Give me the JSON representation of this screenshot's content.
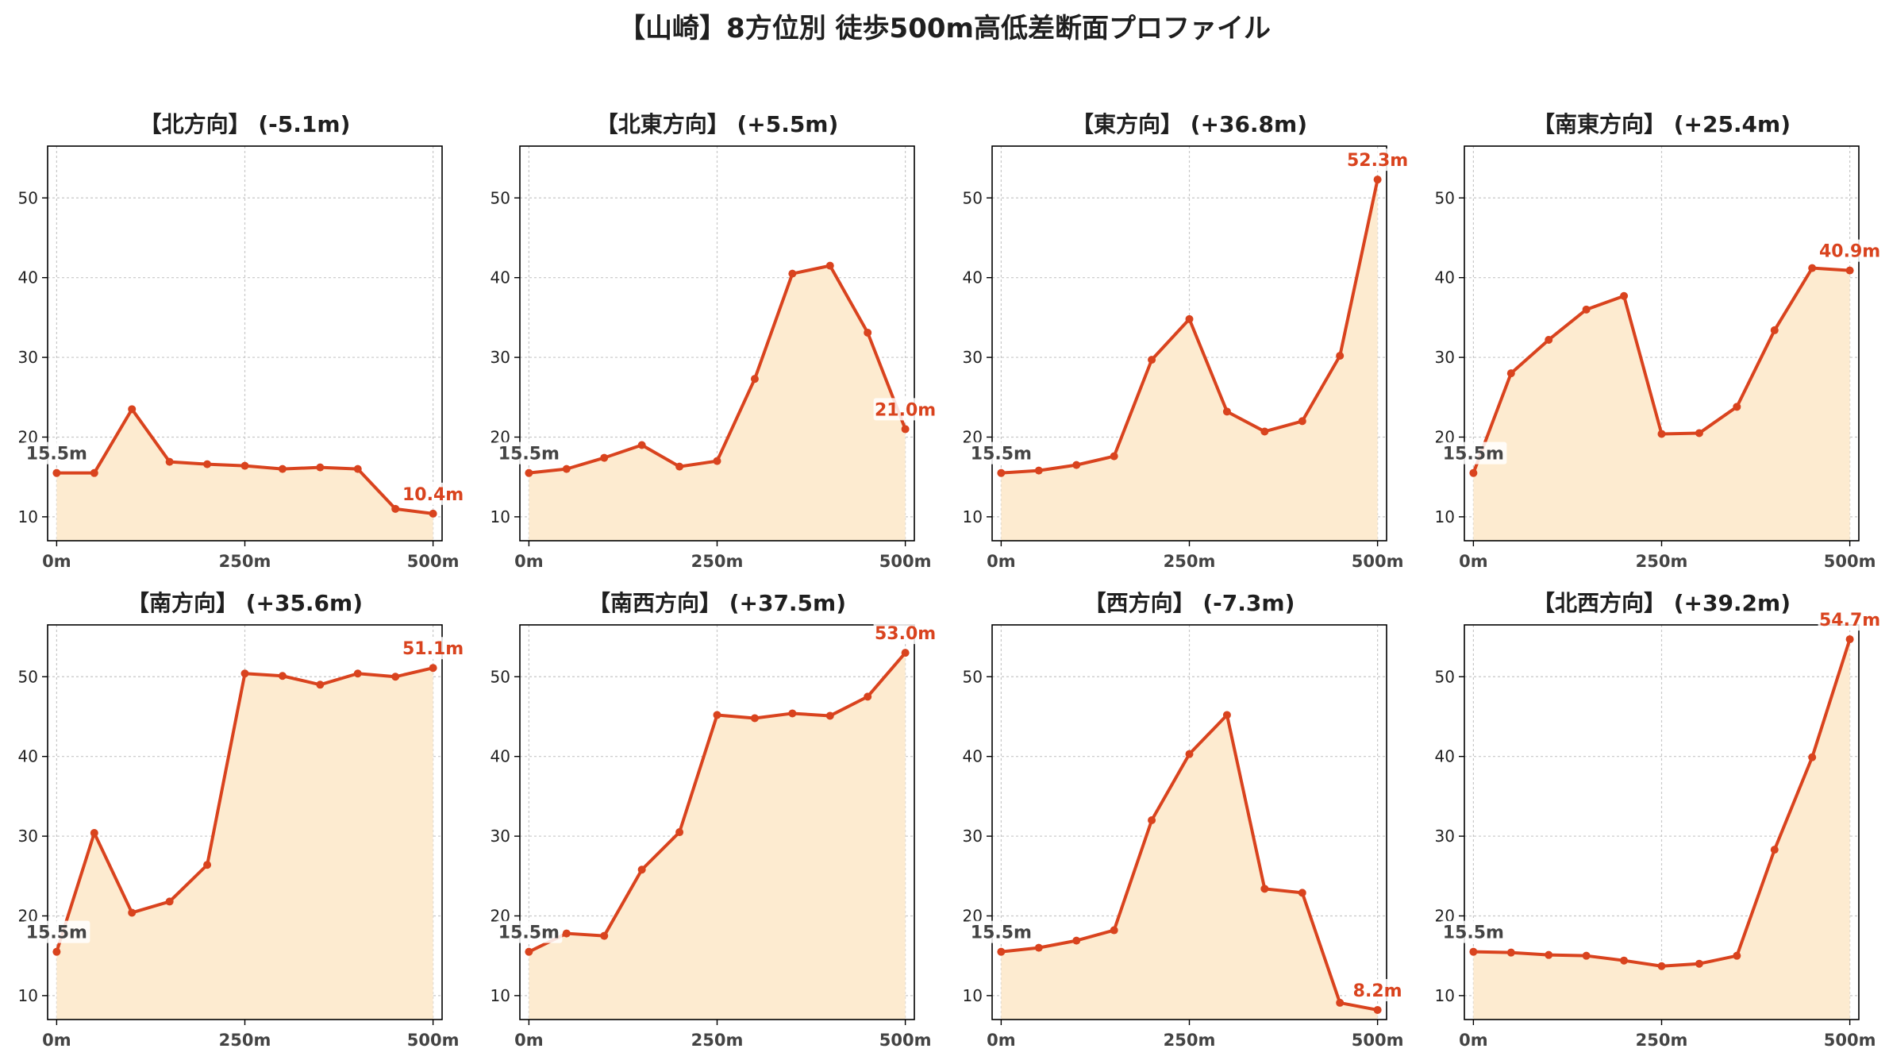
{
  "title": "【山崎】8方位別 徒歩500m高低差断面プロファイル",
  "colors": {
    "line": "#d9431e",
    "fill": "#fdebd0",
    "grid": "#c8c8c8",
    "start_label": "#444444",
    "end_label": "#d9431e"
  },
  "chart_data": [
    {
      "type": "area",
      "title": "【北方向】 (-5.1m)",
      "x": [
        0,
        50,
        100,
        150,
        200,
        250,
        300,
        350,
        400,
        450,
        500
      ],
      "values": [
        15.5,
        15.5,
        23.5,
        16.9,
        16.6,
        16.4,
        16.0,
        16.2,
        16.0,
        11.0,
        10.4
      ],
      "xticks": [
        "0m",
        "250m",
        "500m"
      ],
      "yticks": [
        10,
        20,
        30,
        40,
        50
      ],
      "ylim": [
        7,
        56.5
      ],
      "xlim": [
        -12,
        512
      ],
      "start_label": "15.5m",
      "end_label": "10.4m",
      "grid": true
    },
    {
      "type": "area",
      "title": "【北東方向】 (+5.5m)",
      "x": [
        0,
        50,
        100,
        150,
        200,
        250,
        300,
        350,
        400,
        450,
        500
      ],
      "values": [
        15.5,
        16.0,
        17.4,
        19.0,
        16.3,
        17.0,
        27.3,
        40.5,
        41.5,
        33.1,
        21.0
      ],
      "xticks": [
        "0m",
        "250m",
        "500m"
      ],
      "yticks": [
        10,
        20,
        30,
        40,
        50
      ],
      "ylim": [
        7,
        56.5
      ],
      "xlim": [
        -12,
        512
      ],
      "start_label": "15.5m",
      "end_label": "21.0m",
      "grid": true
    },
    {
      "type": "area",
      "title": "【東方向】 (+36.8m)",
      "x": [
        0,
        50,
        100,
        150,
        200,
        250,
        300,
        350,
        400,
        450,
        500
      ],
      "values": [
        15.5,
        15.8,
        16.5,
        17.6,
        29.7,
        34.8,
        23.2,
        20.7,
        22.0,
        30.2,
        52.3
      ],
      "xticks": [
        "0m",
        "250m",
        "500m"
      ],
      "yticks": [
        10,
        20,
        30,
        40,
        50
      ],
      "ylim": [
        7,
        56.5
      ],
      "xlim": [
        -12,
        512
      ],
      "start_label": "15.5m",
      "end_label": "52.3m",
      "grid": true
    },
    {
      "type": "area",
      "title": "【南東方向】 (+25.4m)",
      "x": [
        0,
        50,
        100,
        150,
        200,
        250,
        300,
        350,
        400,
        450,
        500
      ],
      "values": [
        15.5,
        28.0,
        32.2,
        36.0,
        37.7,
        20.4,
        20.5,
        23.8,
        33.4,
        41.2,
        40.9
      ],
      "xticks": [
        "0m",
        "250m",
        "500m"
      ],
      "yticks": [
        10,
        20,
        30,
        40,
        50
      ],
      "ylim": [
        7,
        56.5
      ],
      "xlim": [
        -12,
        512
      ],
      "start_label": "15.5m",
      "end_label": "40.9m",
      "grid": true
    },
    {
      "type": "area",
      "title": "【南方向】 (+35.6m)",
      "x": [
        0,
        50,
        100,
        150,
        200,
        250,
        300,
        350,
        400,
        450,
        500
      ],
      "values": [
        15.5,
        30.4,
        20.4,
        21.8,
        26.4,
        50.4,
        50.1,
        49.0,
        50.4,
        50.0,
        51.1
      ],
      "xticks": [
        "0m",
        "250m",
        "500m"
      ],
      "yticks": [
        10,
        20,
        30,
        40,
        50
      ],
      "ylim": [
        7,
        56.5
      ],
      "xlim": [
        -12,
        512
      ],
      "start_label": "15.5m",
      "end_label": "51.1m",
      "grid": true
    },
    {
      "type": "area",
      "title": "【南西方向】 (+37.5m)",
      "x": [
        0,
        50,
        100,
        150,
        200,
        250,
        300,
        350,
        400,
        450,
        500
      ],
      "values": [
        15.5,
        17.8,
        17.5,
        25.8,
        30.5,
        45.2,
        44.8,
        45.4,
        45.1,
        47.5,
        53.0
      ],
      "xticks": [
        "0m",
        "250m",
        "500m"
      ],
      "yticks": [
        10,
        20,
        30,
        40,
        50
      ],
      "ylim": [
        7,
        56.5
      ],
      "xlim": [
        -12,
        512
      ],
      "start_label": "15.5m",
      "end_label": "53.0m",
      "grid": true
    },
    {
      "type": "area",
      "title": "【西方向】 (-7.3m)",
      "x": [
        0,
        50,
        100,
        150,
        200,
        250,
        300,
        350,
        400,
        450,
        500
      ],
      "values": [
        15.5,
        16.0,
        16.9,
        18.2,
        32.0,
        40.3,
        45.2,
        23.4,
        22.9,
        9.1,
        8.2
      ],
      "xticks": [
        "0m",
        "250m",
        "500m"
      ],
      "yticks": [
        10,
        20,
        30,
        40,
        50
      ],
      "ylim": [
        7,
        56.5
      ],
      "xlim": [
        -12,
        512
      ],
      "start_label": "15.5m",
      "end_label": "8.2m",
      "grid": true
    },
    {
      "type": "area",
      "title": "【北西方向】 (+39.2m)",
      "x": [
        0,
        50,
        100,
        150,
        200,
        250,
        300,
        350,
        400,
        450,
        500
      ],
      "values": [
        15.5,
        15.4,
        15.1,
        15.0,
        14.4,
        13.7,
        14.0,
        15.0,
        28.3,
        39.9,
        54.7
      ],
      "xticks": [
        "0m",
        "250m",
        "500m"
      ],
      "yticks": [
        10,
        20,
        30,
        40,
        50
      ],
      "ylim": [
        7,
        56.5
      ],
      "xlim": [
        -12,
        512
      ],
      "start_label": "15.5m",
      "end_label": "54.7m",
      "grid": true
    }
  ]
}
